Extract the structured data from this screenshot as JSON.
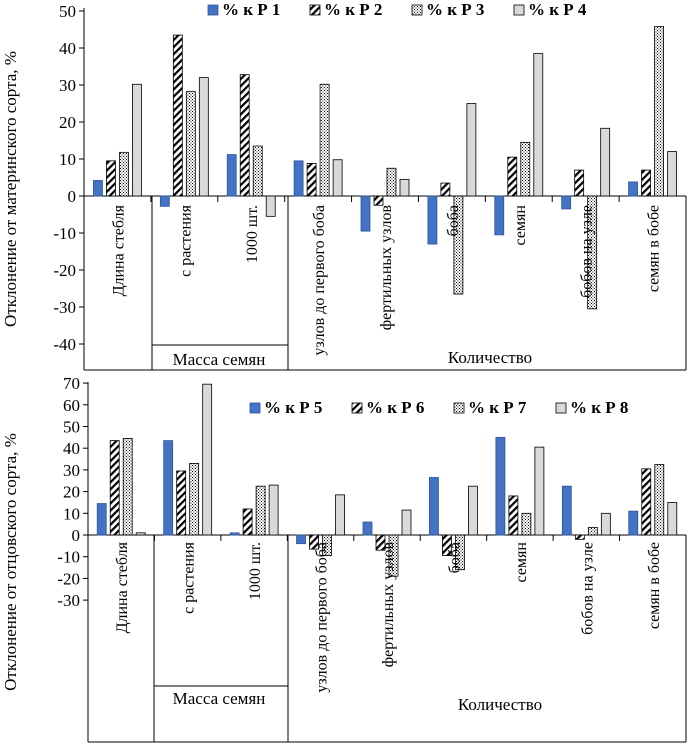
{
  "chart_data": [
    {
      "type": "bar",
      "ylabel": "Отклонение от материнского сорта, %",
      "ylim": [
        -40,
        50
      ],
      "yticks": [
        -40,
        -30,
        -20,
        -10,
        0,
        10,
        20,
        30,
        40,
        50
      ],
      "categories": [
        "Длина стебля",
        "с растения",
        "1000 шт.",
        "узлов до первого боба",
        "фертильных узлов",
        "боба",
        "семян",
        "бобов на узле",
        "семян в бобе"
      ],
      "group_labels": [
        "Масса семян",
        "Количество"
      ],
      "legend_position": "top-right",
      "series": [
        {
          "name": "% к Р 1",
          "pattern": "solid",
          "color": "#4472c4",
          "values": [
            4.2,
            -2.8,
            11.2,
            9.5,
            -9.5,
            -13.0,
            -10.5,
            -3.5,
            3.8
          ]
        },
        {
          "name": "% к Р 2",
          "pattern": "diagonal",
          "color": "#000000",
          "values": [
            9.5,
            43.5,
            32.8,
            8.8,
            -2.5,
            3.5,
            10.5,
            7.0,
            7.0
          ]
        },
        {
          "name": "% к Р 3",
          "pattern": "dots",
          "color": "#000000",
          "values": [
            11.8,
            28.2,
            13.5,
            30.2,
            7.5,
            -26.5,
            14.5,
            -30.5,
            45.8
          ]
        },
        {
          "name": "% к Р 4",
          "pattern": "gray",
          "color": "#d9d9d9",
          "values": [
            30.2,
            32.0,
            -5.5,
            9.8,
            4.5,
            25.0,
            38.5,
            18.3,
            12.0
          ]
        }
      ]
    },
    {
      "type": "bar",
      "ylabel": "Отклонение от отцовского сорта, %",
      "ylim": [
        -30,
        70
      ],
      "yticks": [
        -30,
        -20,
        -10,
        0,
        10,
        20,
        30,
        40,
        50,
        60,
        70
      ],
      "categories": [
        "Длина стебля",
        "с растения",
        "1000 шт.",
        "узлов до первого боба",
        "фертильных узлов",
        "боба",
        "семян",
        "бобов на узле",
        "семян в бобе"
      ],
      "group_labels": [
        "Масса семян",
        "Количество"
      ],
      "legend_position": "top-right",
      "series": [
        {
          "name": "% к Р 5",
          "pattern": "solid",
          "color": "#4472c4",
          "values": [
            14.5,
            43.5,
            1.0,
            -4.0,
            6.0,
            26.5,
            45.0,
            22.5,
            11.0
          ]
        },
        {
          "name": "% к Р 6",
          "pattern": "diagonal",
          "color": "#000000",
          "values": [
            43.5,
            29.5,
            12.0,
            -6.5,
            -7.0,
            -9.5,
            18.0,
            -2.0,
            30.5
          ]
        },
        {
          "name": "% к Р 7",
          "pattern": "dots",
          "color": "#000000",
          "values": [
            44.5,
            33.0,
            22.5,
            -9.5,
            -19.0,
            -16.0,
            10.0,
            3.5,
            32.5
          ]
        },
        {
          "name": "% к Р 8",
          "pattern": "gray",
          "color": "#d9d9d9",
          "values": [
            1.0,
            69.5,
            23.0,
            18.5,
            11.5,
            22.5,
            40.5,
            10.0,
            15.0
          ]
        }
      ]
    }
  ]
}
